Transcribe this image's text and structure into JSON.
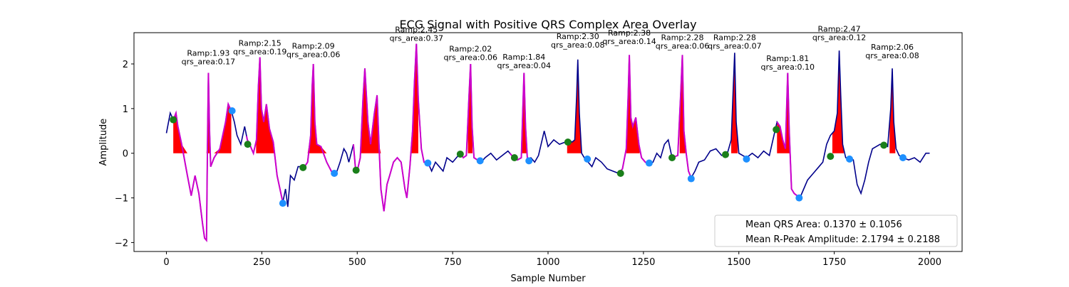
{
  "chart_data": {
    "type": "line",
    "title": "ECG Signal with Positive QRS Complex Area Overlay",
    "xlabel": "Sample Number",
    "ylabel": "Amplitude",
    "xlim": [
      -85,
      2085
    ],
    "ylim": [
      -2.2,
      2.7
    ],
    "xticks": [
      0,
      250,
      500,
      750,
      1000,
      1250,
      1500,
      1750,
      2000
    ],
    "yticks": [
      -2,
      -1,
      0,
      1,
      2
    ],
    "grid": false,
    "colors": {
      "signal": "#00008b",
      "overlay": "#cc00cc",
      "area": "#ff0000",
      "onset": "#1a7f1a",
      "offset": "#1e90ff"
    },
    "signal": [
      [
        0,
        0.45
      ],
      [
        10,
        0.9
      ],
      [
        18,
        0.75
      ],
      [
        25,
        0.9
      ],
      [
        30,
        0.6
      ],
      [
        40,
        0.2
      ],
      [
        55,
        -0.5
      ],
      [
        65,
        -0.95
      ],
      [
        75,
        -0.5
      ],
      [
        85,
        -0.9
      ],
      [
        95,
        -1.6
      ],
      [
        100,
        -1.9
      ],
      [
        105,
        -1.95
      ],
      [
        108,
        0.5
      ],
      [
        110,
        1.8
      ],
      [
        113,
        0.5
      ],
      [
        116,
        -0.3
      ],
      [
        125,
        -0.1
      ],
      [
        140,
        0.1
      ],
      [
        155,
        0.7
      ],
      [
        162,
        1.1
      ],
      [
        170,
        0.95
      ],
      [
        178,
        0.7
      ],
      [
        185,
        0.4
      ],
      [
        195,
        0.2
      ],
      [
        205,
        0.6
      ],
      [
        212,
        0.3
      ],
      [
        218,
        0.2
      ],
      [
        228,
        0.0
      ],
      [
        236,
        0.3
      ],
      [
        241,
        1.5
      ],
      [
        245,
        2.15
      ],
      [
        249,
        1.0
      ],
      [
        255,
        0.7
      ],
      [
        262,
        1.1
      ],
      [
        270,
        0.55
      ],
      [
        280,
        0.25
      ],
      [
        290,
        -0.5
      ],
      [
        300,
        -0.9
      ],
      [
        305,
        -1.1
      ],
      [
        312,
        -0.8
      ],
      [
        318,
        -1.2
      ],
      [
        325,
        -0.5
      ],
      [
        335,
        -0.6
      ],
      [
        345,
        -0.3
      ],
      [
        355,
        -0.3
      ],
      [
        362,
        -0.3
      ],
      [
        370,
        -0.2
      ],
      [
        378,
        0.4
      ],
      [
        382,
        1.5
      ],
      [
        385,
        2.0
      ],
      [
        389,
        0.7
      ],
      [
        394,
        0.2
      ],
      [
        405,
        0.15
      ],
      [
        420,
        -0.2
      ],
      [
        435,
        -0.45
      ],
      [
        445,
        -0.45
      ],
      [
        455,
        -0.2
      ],
      [
        465,
        0.1
      ],
      [
        472,
        0.0
      ],
      [
        478,
        -0.2
      ],
      [
        490,
        0.2
      ],
      [
        495,
        -0.3
      ],
      [
        500,
        -0.4
      ],
      [
        508,
        -0.1
      ],
      [
        515,
        1.2
      ],
      [
        520,
        1.9
      ],
      [
        528,
        0.7
      ],
      [
        535,
        0.2
      ],
      [
        545,
        0.9
      ],
      [
        552,
        1.3
      ],
      [
        557,
        0.2
      ],
      [
        562,
        -0.8
      ],
      [
        570,
        -1.3
      ],
      [
        578,
        -0.7
      ],
      [
        585,
        -0.5
      ],
      [
        595,
        -0.2
      ],
      [
        605,
        -0.1
      ],
      [
        615,
        -0.2
      ],
      [
        625,
        -0.8
      ],
      [
        630,
        -1.0
      ],
      [
        638,
        -0.3
      ],
      [
        645,
        0.5
      ],
      [
        650,
        1.6
      ],
      [
        655,
        2.45
      ],
      [
        660,
        1.2
      ],
      [
        668,
        0.1
      ],
      [
        675,
        -0.2
      ],
      [
        685,
        -0.2
      ],
      [
        695,
        -0.4
      ],
      [
        705,
        -0.2
      ],
      [
        715,
        -0.3
      ],
      [
        725,
        -0.4
      ],
      [
        735,
        -0.1
      ],
      [
        750,
        -0.2
      ],
      [
        760,
        -0.1
      ],
      [
        770,
        0.0
      ],
      [
        778,
        -0.1
      ],
      [
        786,
        -0.05
      ],
      [
        793,
        1.3
      ],
      [
        797,
        2.0
      ],
      [
        801,
        0.6
      ],
      [
        806,
        -0.1
      ],
      [
        815,
        -0.15
      ],
      [
        825,
        -0.2
      ],
      [
        835,
        -0.1
      ],
      [
        850,
        0.0
      ],
      [
        865,
        -0.15
      ],
      [
        880,
        -0.05
      ],
      [
        895,
        0.05
      ],
      [
        910,
        -0.1
      ],
      [
        920,
        -0.15
      ],
      [
        930,
        -0.1
      ],
      [
        934,
        1.0
      ],
      [
        937,
        1.8
      ],
      [
        941,
        0.6
      ],
      [
        946,
        -0.15
      ],
      [
        955,
        -0.1
      ],
      [
        965,
        -0.2
      ],
      [
        975,
        -0.05
      ],
      [
        990,
        0.5
      ],
      [
        1000,
        0.15
      ],
      [
        1015,
        0.3
      ],
      [
        1030,
        0.2
      ],
      [
        1045,
        0.25
      ],
      [
        1055,
        0.3
      ],
      [
        1063,
        0.25
      ],
      [
        1070,
        0.3
      ],
      [
        1075,
        1.3
      ],
      [
        1078,
        2.1
      ],
      [
        1082,
        0.9
      ],
      [
        1088,
        0.0
      ],
      [
        1095,
        -0.1
      ],
      [
        1105,
        -0.2
      ],
      [
        1115,
        -0.3
      ],
      [
        1125,
        -0.1
      ],
      [
        1140,
        -0.2
      ],
      [
        1155,
        -0.35
      ],
      [
        1170,
        -0.4
      ],
      [
        1185,
        -0.45
      ],
      [
        1195,
        -0.35
      ],
      [
        1205,
        0.1
      ],
      [
        1210,
        1.3
      ],
      [
        1213,
        2.2
      ],
      [
        1217,
        0.8
      ],
      [
        1222,
        0.6
      ],
      [
        1230,
        0.8
      ],
      [
        1238,
        0.2
      ],
      [
        1245,
        -0.1
      ],
      [
        1255,
        -0.2
      ],
      [
        1265,
        -0.25
      ],
      [
        1275,
        -0.2
      ],
      [
        1285,
        0.0
      ],
      [
        1295,
        -0.1
      ],
      [
        1305,
        0.2
      ],
      [
        1315,
        0.3
      ],
      [
        1325,
        -0.1
      ],
      [
        1340,
        -0.05
      ],
      [
        1348,
        1.4
      ],
      [
        1352,
        2.2
      ],
      [
        1356,
        0.5
      ],
      [
        1362,
        0.0
      ],
      [
        1368,
        -0.4
      ],
      [
        1375,
        -0.55
      ],
      [
        1385,
        -0.4
      ],
      [
        1395,
        -0.2
      ],
      [
        1410,
        -0.15
      ],
      [
        1425,
        0.05
      ],
      [
        1440,
        0.1
      ],
      [
        1455,
        -0.05
      ],
      [
        1470,
        0.0
      ],
      [
        1480,
        0.3
      ],
      [
        1485,
        1.4
      ],
      [
        1489,
        2.25
      ],
      [
        1493,
        0.7
      ],
      [
        1500,
        0.0
      ],
      [
        1510,
        -0.05
      ],
      [
        1520,
        -0.1
      ],
      [
        1535,
        0.0
      ],
      [
        1550,
        -0.1
      ],
      [
        1565,
        0.05
      ],
      [
        1580,
        -0.05
      ],
      [
        1592,
        0.4
      ],
      [
        1600,
        0.7
      ],
      [
        1608,
        0.6
      ],
      [
        1615,
        0.3
      ],
      [
        1622,
        0.1
      ],
      [
        1628,
        1.8
      ],
      [
        1632,
        0.5
      ],
      [
        1638,
        -0.8
      ],
      [
        1645,
        -0.9
      ],
      [
        1660,
        -1.0
      ],
      [
        1670,
        -0.8
      ],
      [
        1680,
        -0.6
      ],
      [
        1690,
        -0.5
      ],
      [
        1700,
        -0.4
      ],
      [
        1710,
        -0.3
      ],
      [
        1720,
        -0.2
      ],
      [
        1730,
        0.2
      ],
      [
        1740,
        0.4
      ],
      [
        1750,
        0.5
      ],
      [
        1758,
        0.9
      ],
      [
        1763,
        2.3
      ],
      [
        1767,
        1.3
      ],
      [
        1772,
        0.2
      ],
      [
        1780,
        -0.1
      ],
      [
        1790,
        -0.1
      ],
      [
        1800,
        -0.15
      ],
      [
        1810,
        -0.7
      ],
      [
        1820,
        -0.9
      ],
      [
        1830,
        -0.6
      ],
      [
        1840,
        -0.2
      ],
      [
        1850,
        0.1
      ],
      [
        1860,
        0.15
      ],
      [
        1870,
        0.2
      ],
      [
        1880,
        0.2
      ],
      [
        1890,
        0.15
      ],
      [
        1898,
        1.0
      ],
      [
        1902,
        1.9
      ],
      [
        1906,
        0.7
      ],
      [
        1912,
        0.1
      ],
      [
        1920,
        -0.05
      ],
      [
        1930,
        -0.1
      ],
      [
        1945,
        -0.15
      ],
      [
        1960,
        -0.1
      ],
      [
        1975,
        -0.2
      ],
      [
        1990,
        0.0
      ],
      [
        2000,
        0.0
      ]
    ],
    "overlay_ranges": [
      [
        15,
        170
      ],
      [
        210,
        305
      ],
      [
        355,
        440
      ],
      [
        490,
        690
      ],
      [
        765,
        820
      ],
      [
        900,
        950
      ],
      [
        1190,
        1265
      ],
      [
        1325,
        1375
      ],
      [
        1600,
        1660
      ]
    ],
    "qrs_areas": [
      [
        18,
        170
      ],
      [
        235,
        282
      ],
      [
        370,
        460
      ],
      [
        500,
        620
      ],
      [
        640,
        660
      ],
      [
        790,
        802
      ],
      [
        932,
        943
      ],
      [
        1050,
        1090
      ],
      [
        1205,
        1240
      ],
      [
        1345,
        1360
      ],
      [
        1480,
        1497
      ],
      [
        1600,
        1635
      ],
      [
        1745,
        1775
      ],
      [
        1895,
        1910
      ]
    ],
    "onset_points": [
      [
        18,
        0.75
      ],
      [
        213,
        0.2
      ],
      [
        358,
        -0.32
      ],
      [
        497,
        -0.38
      ],
      [
        770,
        -0.02
      ],
      [
        912,
        -0.1
      ],
      [
        1052,
        0.25
      ],
      [
        1190,
        -0.45
      ],
      [
        1325,
        -0.1
      ],
      [
        1465,
        -0.03
      ],
      [
        1598,
        0.53
      ],
      [
        1740,
        -0.07
      ],
      [
        1880,
        0.18
      ]
    ],
    "offset_points": [
      [
        172,
        0.95
      ],
      [
        305,
        -1.12
      ],
      [
        440,
        -0.45
      ],
      [
        685,
        -0.22
      ],
      [
        822,
        -0.17
      ],
      [
        950,
        -0.17
      ],
      [
        1103,
        -0.13
      ],
      [
        1265,
        -0.22
      ],
      [
        1375,
        -0.57
      ],
      [
        1520,
        -0.13
      ],
      [
        1658,
        -1.0
      ],
      [
        1790,
        -0.13
      ],
      [
        1930,
        -0.1
      ]
    ],
    "annotations": [
      {
        "x": 110,
        "y": 1.93,
        "ramp": "Ramp:1.93",
        "qrs": "qrs_area:0.17"
      },
      {
        "x": 245,
        "y": 2.15,
        "ramp": "Ramp:2.15",
        "qrs": "qrs_area:0.19"
      },
      {
        "x": 385,
        "y": 2.09,
        "ramp": "Ramp:2.09",
        "qrs": "qrs_area:0.06"
      },
      {
        "x": 655,
        "y": 2.45,
        "ramp": "Ramp:2.45",
        "qrs": "qrs_area:0.37"
      },
      {
        "x": 797,
        "y": 2.02,
        "ramp": "Ramp:2.02",
        "qrs": "qrs_area:0.06"
      },
      {
        "x": 937,
        "y": 1.84,
        "ramp": "Ramp:1.84",
        "qrs": "qrs_area:0.04"
      },
      {
        "x": 1078,
        "y": 2.3,
        "ramp": "Ramp:2.30",
        "qrs": "qrs_area:0.08"
      },
      {
        "x": 1213,
        "y": 2.38,
        "ramp": "Ramp:2.38",
        "qrs": "qrs_area:0.14"
      },
      {
        "x": 1352,
        "y": 2.28,
        "ramp": "Ramp:2.28",
        "qrs": "qrs_area:0.06"
      },
      {
        "x": 1489,
        "y": 2.28,
        "ramp": "Ramp:2.28",
        "qrs": "qrs_area:0.07"
      },
      {
        "x": 1628,
        "y": 1.81,
        "ramp": "Ramp:1.81",
        "qrs": "qrs_area:0.10"
      },
      {
        "x": 1763,
        "y": 2.47,
        "ramp": "Ramp:2.47",
        "qrs": "qrs_area:0.12"
      },
      {
        "x": 1902,
        "y": 2.06,
        "ramp": "Ramp:2.06",
        "qrs": "qrs_area:0.08"
      }
    ],
    "legend": {
      "placement": "lower-right",
      "entries": [
        "Mean QRS Area: 0.1370 ± 0.1056",
        "Mean R-Peak Amplitude: 2.1794 ± 0.2188"
      ]
    }
  }
}
